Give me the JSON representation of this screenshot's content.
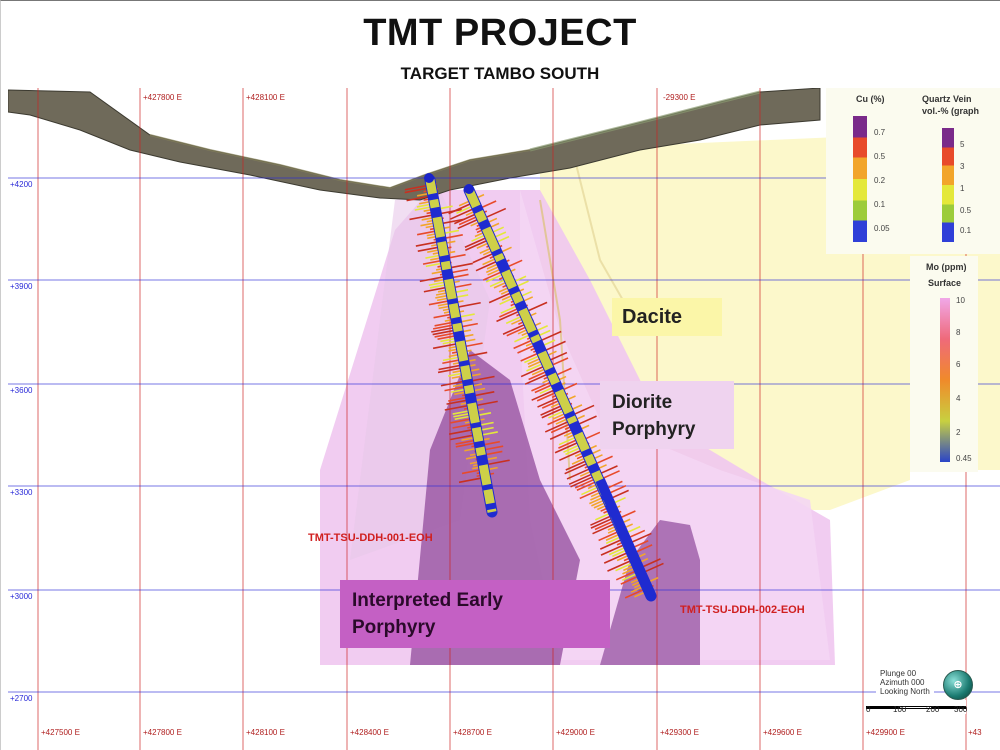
{
  "title": "TMT PROJECT",
  "subtitle": "TARGET TAMBO SOUTH",
  "easting_labels": {
    "top": [
      "+427800 E",
      "+428100 E",
      "-29300 E"
    ],
    "bottom": [
      "+427500 E",
      "+427800 E",
      "+428100 E",
      "+428400 E",
      "+428700 E",
      "+429000 E",
      "+429300 E",
      "+429600 E",
      "+429900 E",
      "+43"
    ]
  },
  "elevation_labels": [
    "+4200",
    "+3900",
    "+3600",
    "+3300",
    "+3000",
    "+2700"
  ],
  "lithology": {
    "dacite": "Dacite",
    "diorite_line1": "Diorite",
    "diorite_line2": "Porphyry",
    "early_line1": "Interpreted Early",
    "early_line2": "Porphyry"
  },
  "drillholes": [
    {
      "id": "TMT-TSU-DDH-001-EOH"
    },
    {
      "id": "TMT-TSU-DDH-002-EOH"
    }
  ],
  "legend_cu": {
    "title": "Cu (%)",
    "ticks": [
      "0.7",
      "0.5",
      "0.2",
      "0.1",
      "0.05"
    ],
    "colors": [
      "#7a2a8a",
      "#e84a2a",
      "#f2a52a",
      "#e4e83a",
      "#9ccc3a",
      "#2f3fd8"
    ]
  },
  "legend_qv": {
    "title_line1": "Quartz Vein",
    "title_line2": "vol.-% (graph",
    "ticks": [
      "5",
      "3",
      "1",
      "0.5",
      "0.1"
    ],
    "colors": [
      "#7a2a8a",
      "#e84a2a",
      "#f2a52a",
      "#e4e83a",
      "#9ccc3a",
      "#2f3fd8"
    ]
  },
  "legend_mo": {
    "title_line1": "Mo (ppm)",
    "title_line2": "Surface",
    "ticks": [
      "10",
      "8",
      "6",
      "4",
      "2",
      "0.45"
    ],
    "colors": [
      "#f0a8e8",
      "#ef6a7a",
      "#f08a2a",
      "#c8d040",
      "#2a44c8"
    ]
  },
  "view": {
    "line1": "Plunge 00",
    "line2": "Azimuth 000",
    "line3": "Looking North"
  },
  "scale": {
    "ticks": [
      "0",
      "100",
      "200",
      "300"
    ]
  }
}
